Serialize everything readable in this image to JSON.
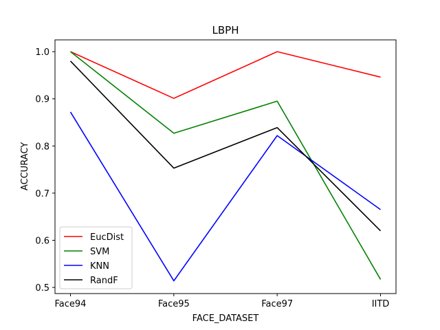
{
  "chart_data": {
    "type": "line",
    "title": "LBPH",
    "xlabel": "FACE_DATASET",
    "ylabel": "ACCURACY",
    "categories": [
      "Face94",
      "Face95",
      "Face97",
      "IITD"
    ],
    "ylim": [
      0.487,
      1.025
    ],
    "yticks": [
      0.5,
      0.6,
      0.7,
      0.8,
      0.9,
      1.0
    ],
    "ytick_labels": [
      "0.5",
      "0.6",
      "0.7",
      "0.8",
      "0.9",
      "1.0"
    ],
    "grid": false,
    "legend_position": "lower-left",
    "series": [
      {
        "name": "EucDist",
        "color": "#ff0000",
        "values": [
          1.0,
          0.901,
          1.0,
          0.946
        ]
      },
      {
        "name": "SVM",
        "color": "#008000",
        "values": [
          1.0,
          0.827,
          0.895,
          0.517
        ]
      },
      {
        "name": "KNN",
        "color": "#0000ff",
        "values": [
          0.872,
          0.514,
          0.822,
          0.665
        ]
      },
      {
        "name": "RandF",
        "color": "#000000",
        "values": [
          0.98,
          0.753,
          0.839,
          0.62
        ]
      }
    ]
  }
}
